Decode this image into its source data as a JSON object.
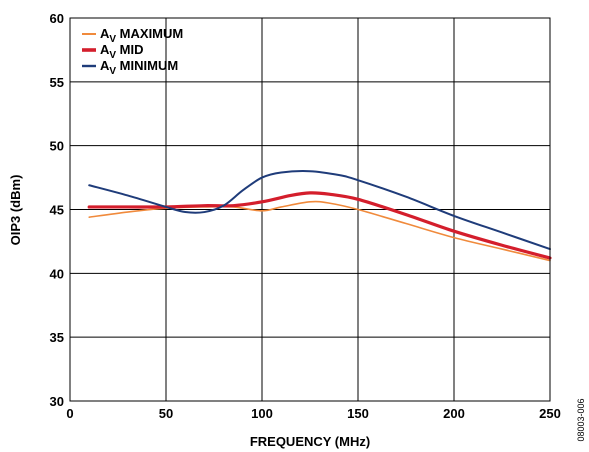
{
  "chart_data": {
    "type": "line",
    "title": "",
    "xlabel": "FREQUENCY (MHz)",
    "ylabel": "OIP3 (dBm)",
    "xlim": [
      0,
      250
    ],
    "ylim": [
      30,
      60
    ],
    "xticks": [
      0,
      50,
      100,
      150,
      200,
      250
    ],
    "yticks": [
      30,
      35,
      40,
      45,
      50,
      55,
      60
    ],
    "grid": true,
    "legend_position": "top-left",
    "series": [
      {
        "name": "MAXIMUM",
        "legend_prefix": "A",
        "legend_sub": "V",
        "color": "#f08a3c",
        "x": [
          10,
          30,
          50,
          70,
          85,
          100,
          110,
          125,
          135,
          150,
          175,
          200,
          225,
          250
        ],
        "y": [
          44.4,
          44.8,
          45.1,
          45.2,
          45.2,
          44.9,
          45.2,
          45.6,
          45.5,
          45.0,
          43.9,
          42.8,
          41.9,
          41.0
        ]
      },
      {
        "name": "MID",
        "legend_prefix": "A",
        "legend_sub": "V",
        "color": "#d41e2c",
        "x": [
          10,
          30,
          50,
          70,
          85,
          100,
          115,
          125,
          135,
          150,
          175,
          200,
          225,
          250
        ],
        "y": [
          45.2,
          45.2,
          45.2,
          45.3,
          45.3,
          45.6,
          46.1,
          46.3,
          46.2,
          45.8,
          44.6,
          43.3,
          42.2,
          41.2
        ]
      },
      {
        "name": "MINIMUM",
        "legend_prefix": "A",
        "legend_sub": "V",
        "color": "#1f3c7a",
        "x": [
          10,
          30,
          50,
          60,
          70,
          80,
          90,
          100,
          110,
          125,
          140,
          150,
          175,
          200,
          225,
          250
        ],
        "y": [
          46.9,
          46.1,
          45.2,
          44.8,
          44.8,
          45.3,
          46.5,
          47.5,
          47.9,
          48.0,
          47.7,
          47.3,
          46.0,
          44.5,
          43.2,
          41.9
        ]
      }
    ]
  },
  "figure_id": "08003-006"
}
